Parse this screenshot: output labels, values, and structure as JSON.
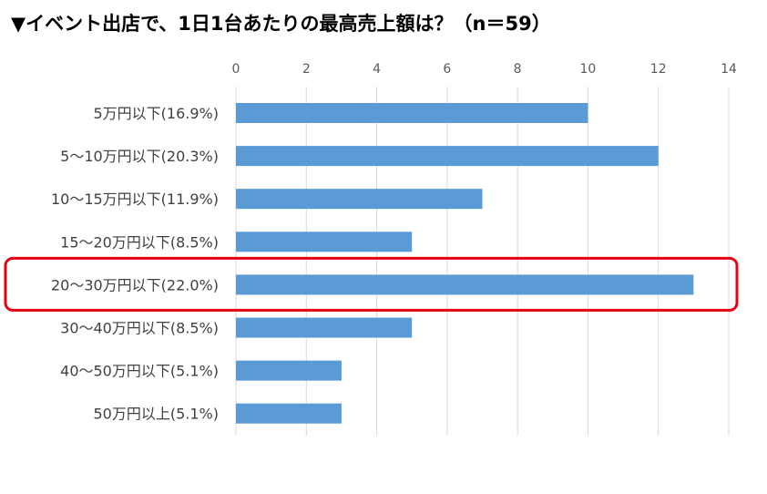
{
  "chart_data": {
    "type": "bar",
    "orientation": "horizontal",
    "title": "▼イベント出店で、1日1台あたりの最高売上額は？（n＝59）",
    "categories": [
      "5万円以下(16.9%)",
      "5～10万円以下(20.3%)",
      "10～15万円以下(11.9%)",
      "15～20万円以下(8.5%)",
      "20～30万円以下(22.0%)",
      "30～40万円以下(8.5%)",
      "40～50万円以下(5.1%)",
      "50万円以上(5.1%)"
    ],
    "values": [
      10,
      12,
      7,
      5,
      13,
      5,
      3,
      3
    ],
    "xlim": [
      0,
      14
    ],
    "xticks": [
      "0",
      "2",
      "4",
      "6",
      "8",
      "10",
      "12",
      "14"
    ],
    "axis_position": "top",
    "grid": true,
    "highlighted_category": "20～30万円以下(22.0%)",
    "colors": {
      "bar": "#5b9bd5",
      "grid": "#d9d9d9",
      "highlight_box": "#e60012"
    }
  }
}
